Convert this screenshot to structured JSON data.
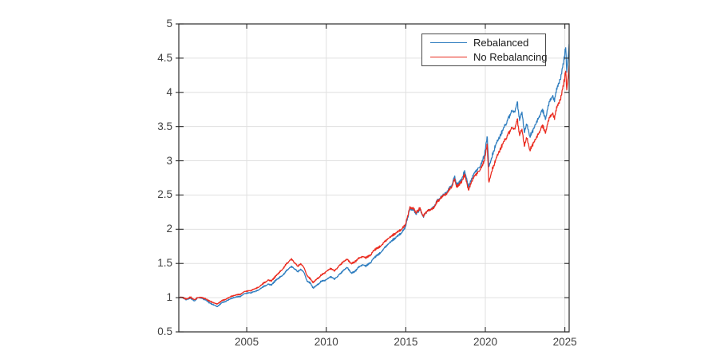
{
  "figure": {
    "background": "#ffffff",
    "type": "matlab-style-plot"
  },
  "colors": {
    "axis": "#2b2b2b",
    "grid": "#e0e0e0",
    "tick_label": "#404040",
    "legend_border": "#4a4a4a",
    "rebalanced_line": "#2e7dbf",
    "no_rebalancing_line": "#ea2b1f"
  },
  "chart_data": {
    "type": "line",
    "title": "",
    "xlabel": "",
    "ylabel": "",
    "grid": true,
    "legend_position": "top-right",
    "xlim": [
      2000.73,
      2025.27
    ],
    "ylim": [
      0.5,
      5
    ],
    "x_ticks": [
      2005,
      2010,
      2015,
      2020,
      2025
    ],
    "x_tick_labels": [
      "2005",
      "2010",
      "2015",
      "2020",
      "2025"
    ],
    "y_ticks": [
      0.5,
      1,
      1.5,
      2,
      2.5,
      3,
      3.5,
      4,
      4.5,
      5
    ],
    "y_tick_labels": [
      "0.5",
      "1",
      "1.5",
      "2",
      "2.5",
      "3",
      "3.5",
      "4",
      "4.5",
      "5"
    ],
    "x": [
      2000.75,
      2001.0,
      2001.2,
      2001.45,
      2001.7,
      2001.9,
      2002.2,
      2002.5,
      2002.75,
      2003.0,
      2003.15,
      2003.4,
      2003.7,
      2004.0,
      2004.3,
      2004.6,
      2004.9,
      2005.2,
      2005.5,
      2005.8,
      2006.1,
      2006.35,
      2006.55,
      2006.8,
      2007.1,
      2007.4,
      2007.6,
      2007.8,
      2008.0,
      2008.2,
      2008.4,
      2008.6,
      2008.8,
      2009.0,
      2009.17,
      2009.4,
      2009.7,
      2010.0,
      2010.3,
      2010.5,
      2010.8,
      2011.0,
      2011.3,
      2011.6,
      2011.8,
      2012.0,
      2012.3,
      2012.5,
      2012.8,
      2013.0,
      2013.3,
      2013.6,
      2013.9,
      2014.2,
      2014.5,
      2014.8,
      2015.0,
      2015.25,
      2015.5,
      2015.65,
      2015.9,
      2016.1,
      2016.4,
      2016.7,
      2017.0,
      2017.3,
      2017.6,
      2017.9,
      2018.07,
      2018.2,
      2018.5,
      2018.7,
      2018.95,
      2019.1,
      2019.4,
      2019.7,
      2019.95,
      2020.12,
      2020.22,
      2020.4,
      2020.6,
      2020.9,
      2021.1,
      2021.4,
      2021.7,
      2021.85,
      2022.0,
      2022.15,
      2022.3,
      2022.45,
      2022.6,
      2022.8,
      2023.0,
      2023.2,
      2023.4,
      2023.6,
      2023.8,
      2024.0,
      2024.2,
      2024.35,
      2024.5,
      2024.7,
      2024.9,
      2025.05,
      2025.12,
      2025.3
    ],
    "series": [
      {
        "name": "Rebalanced",
        "color": "#2e7dbf",
        "values": [
          1.0,
          1.0,
          0.97,
          1.0,
          0.95,
          1.0,
          0.99,
          0.95,
          0.91,
          0.89,
          0.87,
          0.92,
          0.95,
          0.99,
          1.01,
          1.02,
          1.06,
          1.07,
          1.09,
          1.12,
          1.17,
          1.2,
          1.18,
          1.25,
          1.3,
          1.36,
          1.42,
          1.45,
          1.43,
          1.38,
          1.41,
          1.36,
          1.24,
          1.22,
          1.14,
          1.18,
          1.24,
          1.26,
          1.31,
          1.27,
          1.33,
          1.38,
          1.44,
          1.36,
          1.38,
          1.44,
          1.48,
          1.46,
          1.52,
          1.58,
          1.64,
          1.71,
          1.79,
          1.85,
          1.9,
          1.97,
          2.05,
          2.3,
          2.28,
          2.22,
          2.3,
          2.18,
          2.28,
          2.3,
          2.42,
          2.48,
          2.55,
          2.65,
          2.78,
          2.65,
          2.72,
          2.85,
          2.63,
          2.72,
          2.85,
          2.93,
          3.1,
          3.38,
          2.9,
          3.05,
          3.2,
          3.35,
          3.45,
          3.6,
          3.75,
          3.7,
          3.87,
          3.6,
          3.7,
          3.42,
          3.55,
          3.35,
          3.45,
          3.55,
          3.65,
          3.75,
          3.62,
          3.85,
          3.95,
          3.88,
          4.05,
          4.2,
          4.4,
          4.65,
          4.28,
          4.77
        ]
      },
      {
        "name": "No Rebalancing",
        "color": "#ea2b1f",
        "values": [
          1.0,
          1.0,
          0.98,
          1.01,
          0.97,
          1.0,
          1.0,
          0.97,
          0.94,
          0.92,
          0.91,
          0.95,
          0.98,
          1.02,
          1.04,
          1.05,
          1.09,
          1.1,
          1.13,
          1.16,
          1.22,
          1.26,
          1.24,
          1.31,
          1.38,
          1.46,
          1.52,
          1.56,
          1.52,
          1.46,
          1.49,
          1.43,
          1.32,
          1.28,
          1.22,
          1.27,
          1.33,
          1.38,
          1.43,
          1.39,
          1.46,
          1.51,
          1.56,
          1.5,
          1.52,
          1.57,
          1.6,
          1.58,
          1.63,
          1.69,
          1.74,
          1.8,
          1.87,
          1.92,
          1.96,
          2.02,
          2.08,
          2.32,
          2.3,
          2.24,
          2.31,
          2.19,
          2.28,
          2.29,
          2.41,
          2.47,
          2.53,
          2.63,
          2.74,
          2.62,
          2.69,
          2.8,
          2.58,
          2.68,
          2.8,
          2.88,
          3.02,
          3.27,
          2.67,
          2.85,
          2.98,
          3.15,
          3.25,
          3.38,
          3.5,
          3.45,
          3.62,
          3.38,
          3.45,
          3.22,
          3.35,
          3.15,
          3.25,
          3.33,
          3.42,
          3.52,
          3.42,
          3.62,
          3.7,
          3.62,
          3.78,
          3.9,
          4.08,
          4.3,
          4.02,
          4.45
        ]
      }
    ]
  }
}
